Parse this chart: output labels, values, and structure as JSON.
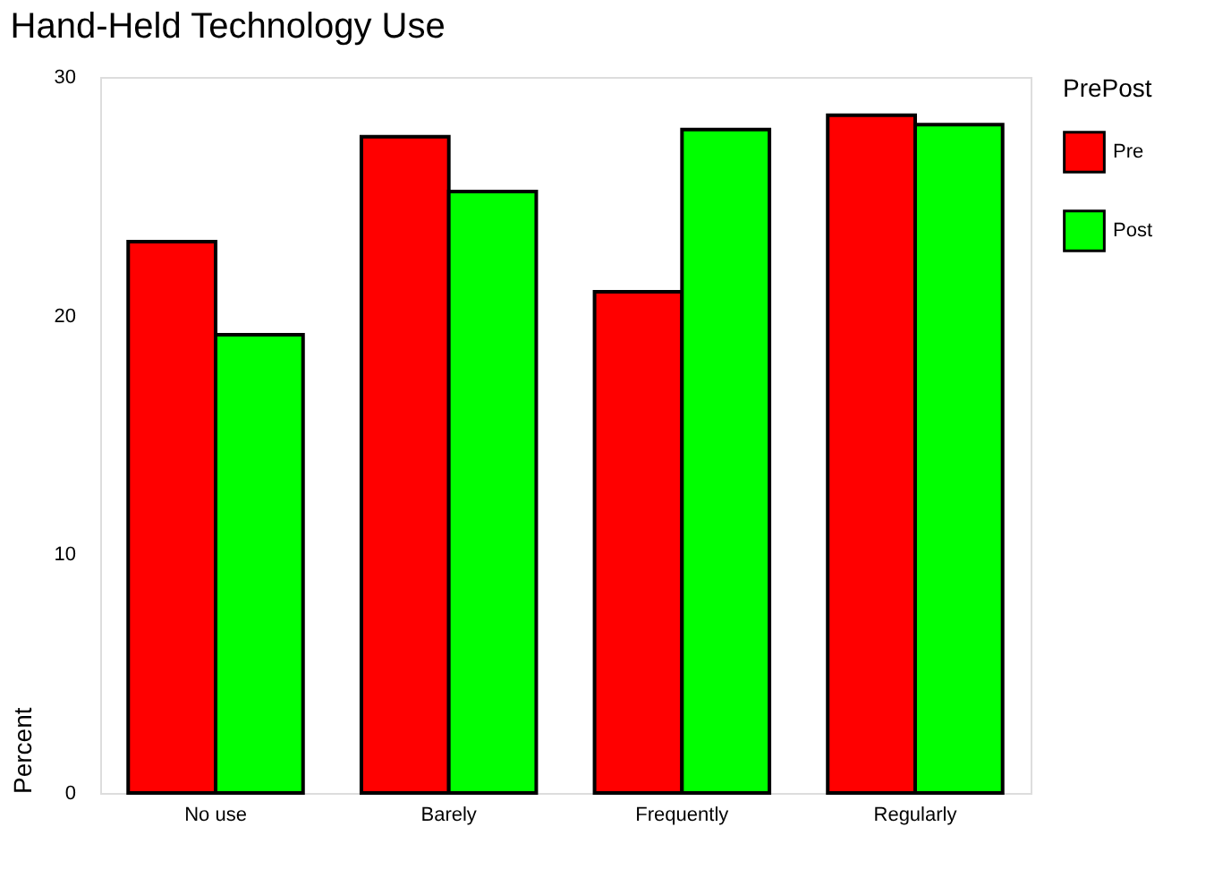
{
  "chart_data": {
    "type": "bar",
    "title": "Hand-Held Technology Use",
    "ylabel": "Percent",
    "legend_title": "PrePost",
    "categories": [
      "No use",
      "Barely",
      "Frequently",
      "Regularly"
    ],
    "series": [
      {
        "name": "Pre",
        "color": "#ff0000",
        "values": [
          23.1,
          27.5,
          21.0,
          28.4
        ]
      },
      {
        "name": "Post",
        "color": "#00ff00",
        "values": [
          19.2,
          25.2,
          27.8,
          28.0
        ]
      }
    ],
    "ylim": [
      0,
      30
    ],
    "yticks": [
      0,
      10,
      20,
      30
    ],
    "grid": false,
    "legend": "right"
  }
}
